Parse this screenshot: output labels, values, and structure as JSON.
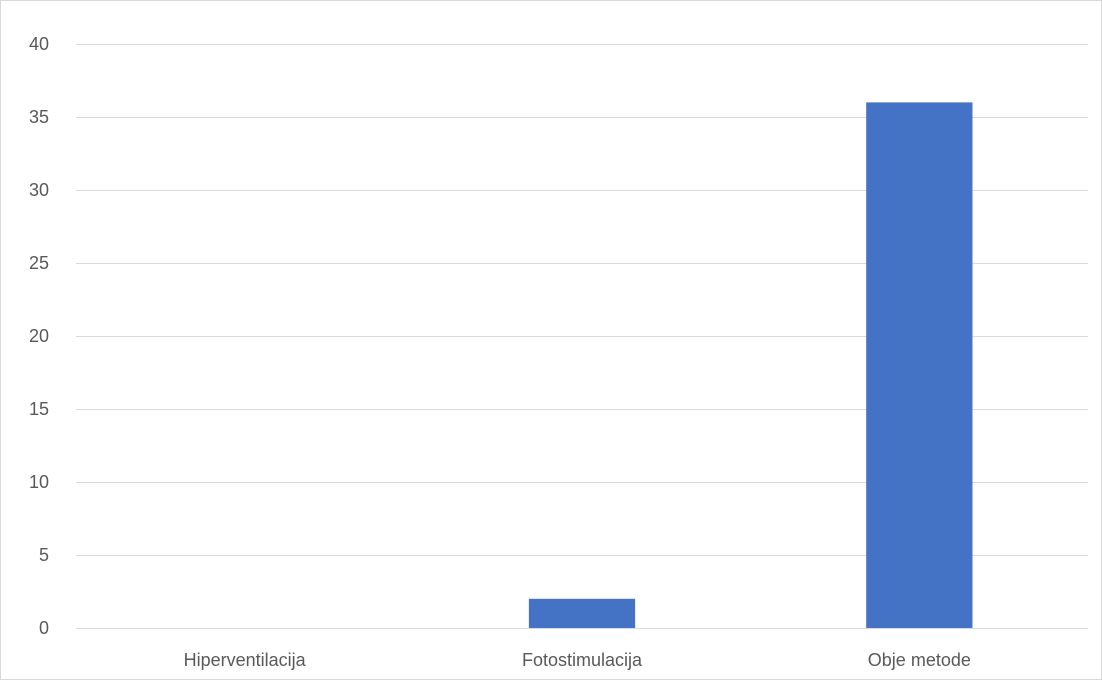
{
  "chart_data": {
    "type": "bar",
    "title": "",
    "xlabel": "",
    "ylabel": "",
    "categories": [
      "Hiperventilacija",
      "Fotostimulacija",
      "Obje metode"
    ],
    "values": [
      0,
      2,
      36
    ],
    "ylim": [
      0,
      40
    ],
    "yticks": [
      0,
      5,
      10,
      15,
      20,
      25,
      30,
      35,
      40
    ],
    "ytick_labels": [
      "0",
      "5",
      "10",
      "15",
      "20",
      "25",
      "30",
      "35",
      "40"
    ],
    "grid": true,
    "legend": "none",
    "bar_color": "#4472C4"
  }
}
